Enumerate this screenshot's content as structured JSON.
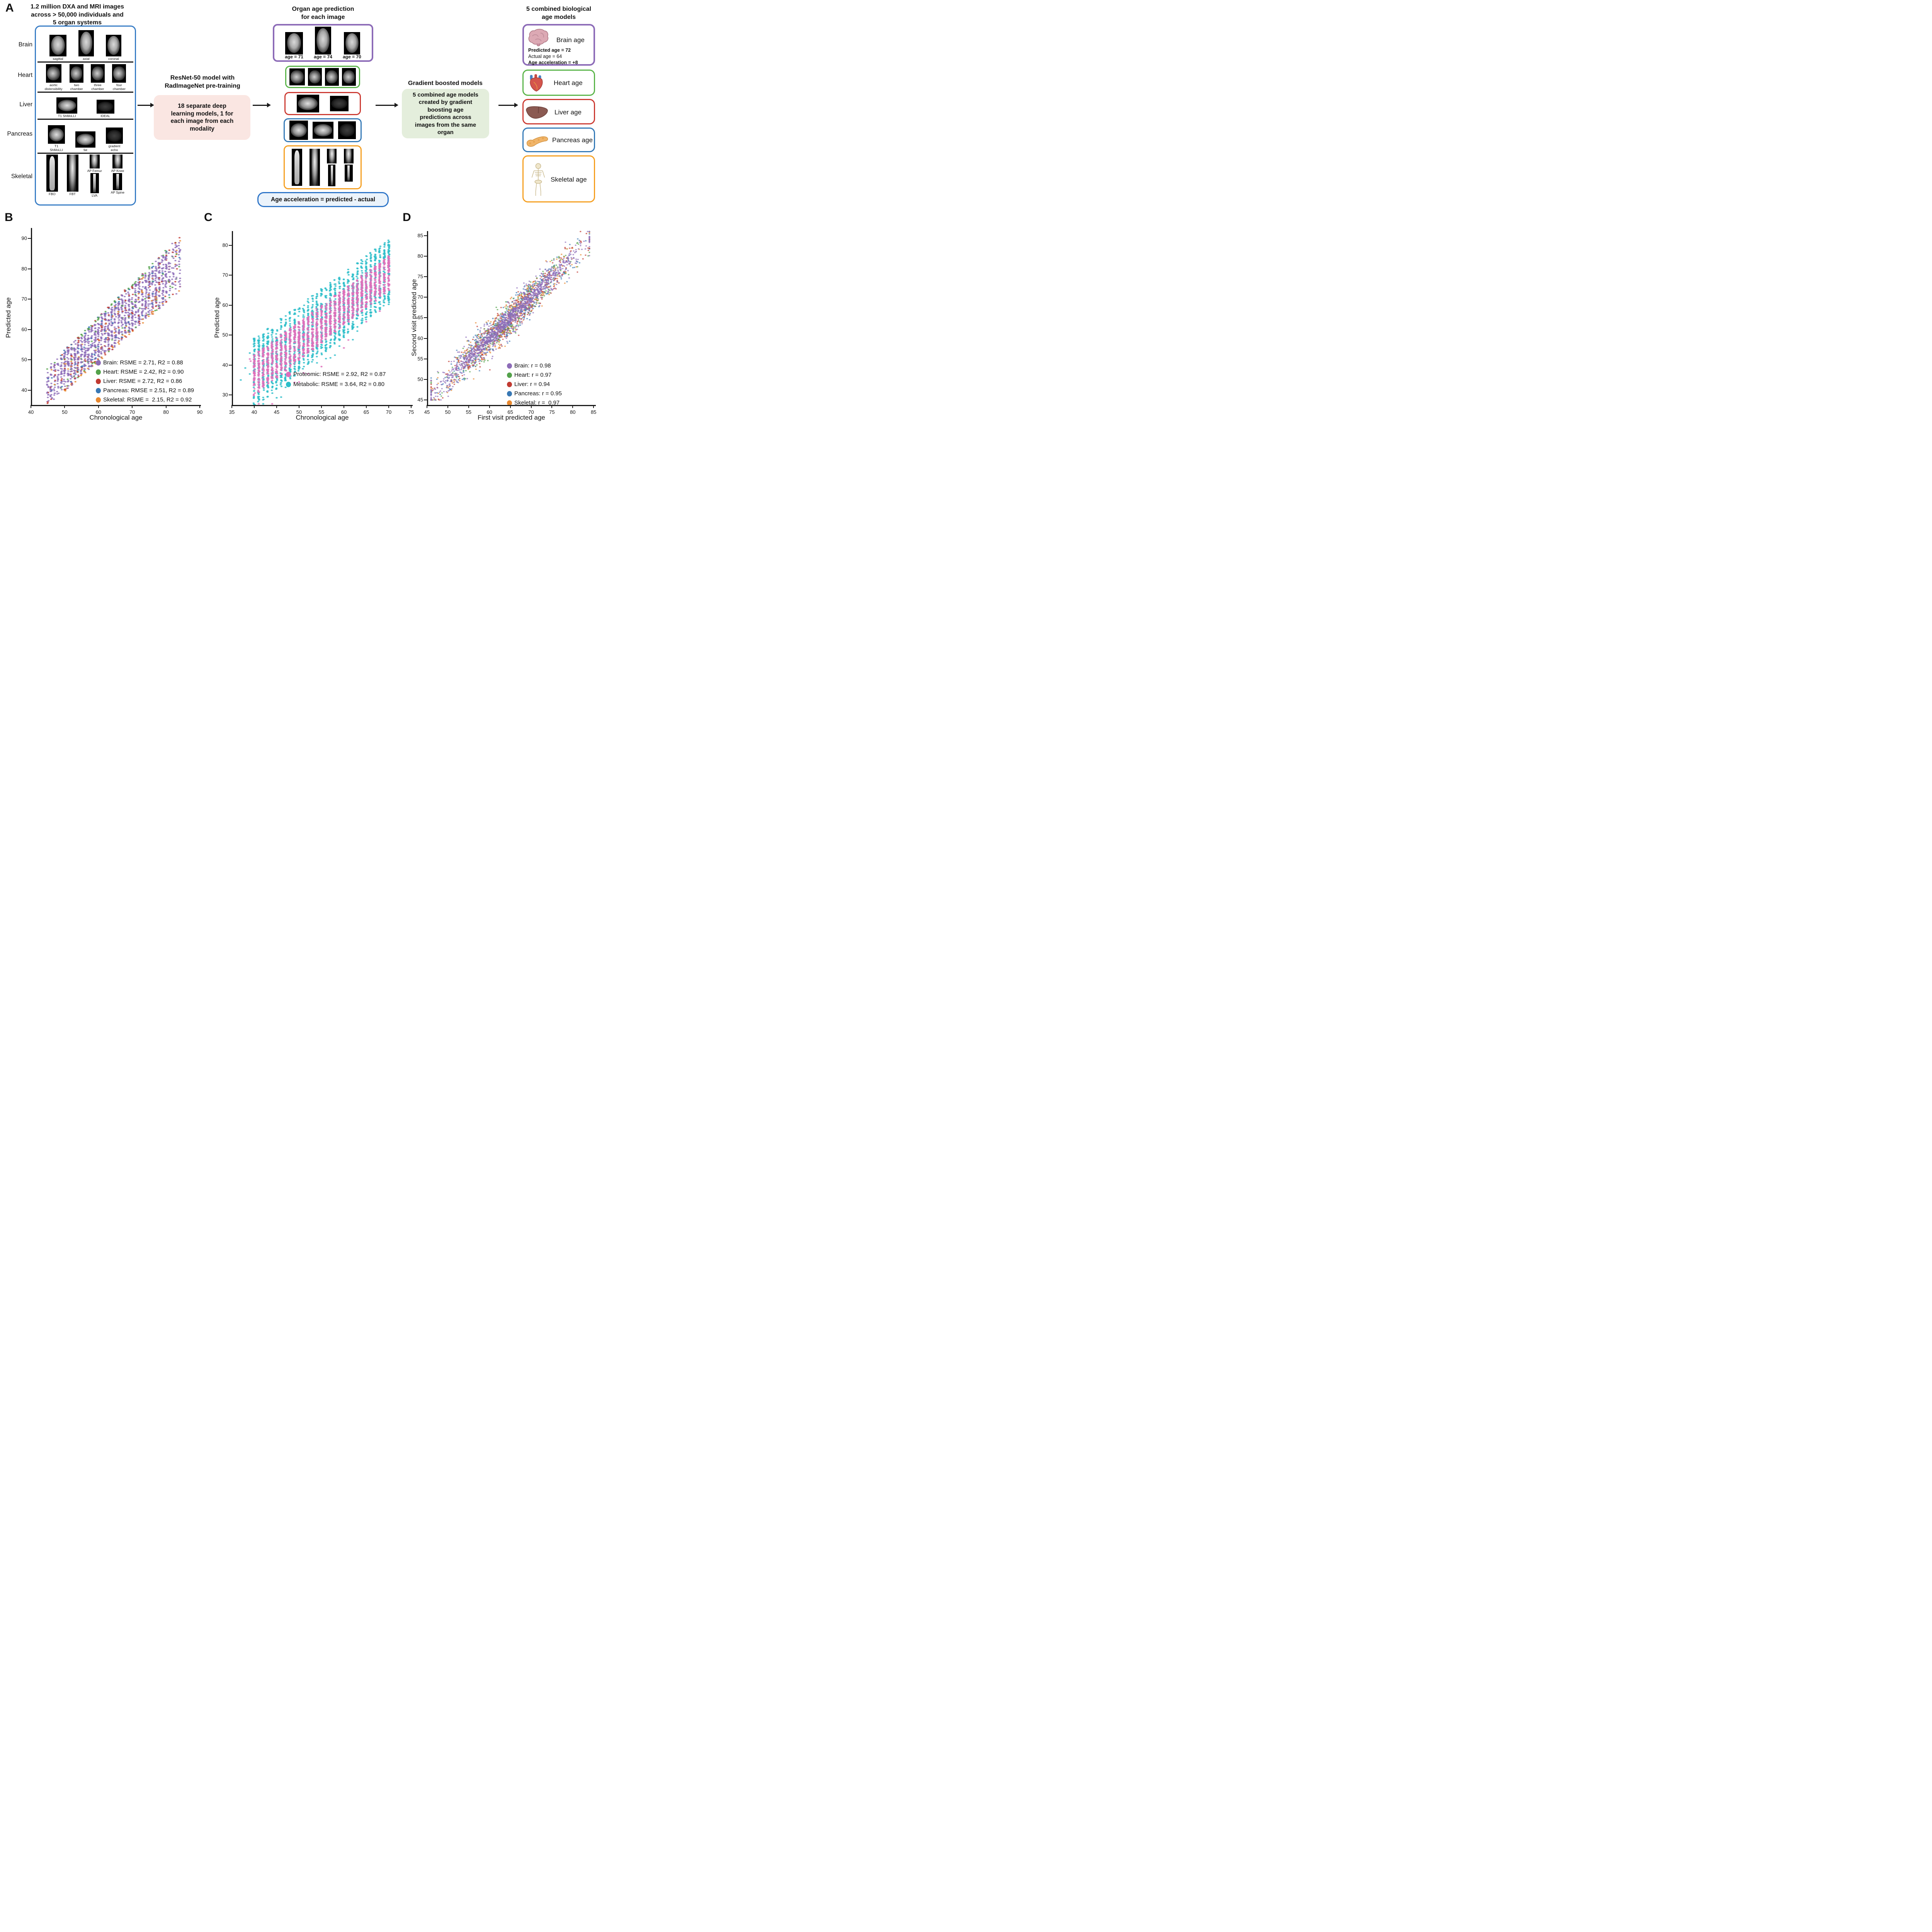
{
  "colors": {
    "purple": "#8D6CB8",
    "green": "#54A24B",
    "red": "#C13A31",
    "blue": "#3878B4",
    "orange": "#E8882F",
    "pink": "#DE6FBB",
    "cyan": "#2CBEC9"
  },
  "accents": {
    "box_blue": "#3A7EC6",
    "resnet_fill": "#FAE6E2",
    "gbm_fill": "#E4EEDC",
    "pill_fill": "#EBF3FB",
    "pill_border": "#2E75C8",
    "divider": "#1b1b1b"
  },
  "panel_a": {
    "label": "A",
    "dataset_title_lines": [
      "1.2 million DXA and MRI images",
      "across > 50,000 individuals and",
      "5 organ systems"
    ],
    "organ_rows": [
      {
        "organ": "Brain",
        "images": [
          "sagittal",
          "axial",
          "coronal"
        ]
      },
      {
        "organ": "Heart",
        "images": [
          "aortic distensibility",
          "two chamber",
          "three chamber",
          "four chamber"
        ]
      },
      {
        "organ": "Liver",
        "images": [
          "T1 ShMoLLI",
          "IDEAL"
        ]
      },
      {
        "organ": "Pancreas",
        "images": [
          "T1 ShMoLLI",
          "fat",
          "gradient echo"
        ]
      },
      {
        "organ": "Skeletal",
        "images": [
          "FBO",
          "FBT",
          "AP Femur",
          "LVA",
          "AP Knee",
          "AP Spine"
        ]
      }
    ],
    "resnet_title_lines": [
      "ResNet-50 model with",
      "RadImageNet pre-training"
    ],
    "resnet_box_lines": [
      "18 separate deep",
      "learning models, 1 for",
      "each image from each",
      "modality"
    ],
    "organ_age_title_lines": [
      "Organ age prediction",
      "for each image"
    ],
    "brain_age_captions": [
      "age = 71",
      "age = 74",
      "age = 70"
    ],
    "age_acceleration_text": "Age acceleration = predicted - actual",
    "gbm_title": "Gradient boosted models",
    "gbm_box_lines": [
      "5 combined age models",
      "created by gradient",
      "boosting age",
      "predictions across",
      "images from the same",
      "organ"
    ],
    "combined_title_lines": [
      "5 combined biological",
      "age models"
    ],
    "combined_cards": [
      {
        "name": "Brain age",
        "color": "#8D6CB8",
        "details": [
          "Predicted age = 72",
          "Actual age = 64",
          "Age acceleration = +8"
        ]
      },
      {
        "name": "Heart age",
        "color": "#5BB54A"
      },
      {
        "name": "Liver age",
        "color": "#CC3B33"
      },
      {
        "name": "Pancreas age",
        "color": "#357AB7"
      },
      {
        "name": "Skeletal age",
        "color": "#F5A023"
      }
    ]
  },
  "chart_data": [
    {
      "id": "B",
      "type": "scatter",
      "xlabel": "Chronological age",
      "ylabel": "Predicted age",
      "xlim": [
        40,
        90
      ],
      "ylim": [
        35,
        95
      ],
      "xticks": [
        40,
        50,
        60,
        70,
        80,
        90
      ],
      "yticks": [
        40,
        50,
        60,
        70,
        80,
        90
      ],
      "grid": false,
      "legend_position": "lower right",
      "series": [
        {
          "name": "Brain",
          "color": "#8D6CB8",
          "rmse": 2.71,
          "r2": 0.88,
          "label": "Brain: RSME = 2.71, R2 = 0.88"
        },
        {
          "name": "Heart",
          "color": "#54A24B",
          "rmse": 2.42,
          "r2": 0.9,
          "label": "Heart: RSME = 2.42, R2 = 0.90"
        },
        {
          "name": "Liver",
          "color": "#C13A31",
          "rmse": 2.72,
          "r2": 0.86,
          "label": "Liver: RSME = 2.72, R2 = 0.86"
        },
        {
          "name": "Pancreas",
          "color": "#3878B4",
          "rmse": 2.51,
          "r2": 0.89,
          "label": "Pancreas: RMSE = 2.51, R2 = 0.89"
        },
        {
          "name": "Skeletal",
          "color": "#E8882F",
          "rmse": 2.15,
          "r2": 0.92,
          "label": "Skeletal: RSME =  2.15, R2 = 0.92"
        }
      ],
      "distribution": {
        "age_min": 45,
        "age_max": 84,
        "band_top_slope": 1.1,
        "band_top_intercept": -1.8,
        "band_bottom_slope": 0.97,
        "band_bottom_intercept": -8.8,
        "points_per_age": 46
      }
    },
    {
      "id": "C",
      "type": "scatter",
      "xlabel": "Chronological age",
      "ylabel": "Predicted age",
      "xlim": [
        35,
        75
      ],
      "ylim": [
        24,
        86
      ],
      "xticks": [
        35,
        40,
        45,
        50,
        55,
        60,
        65,
        70,
        75
      ],
      "yticks": [
        30,
        40,
        50,
        60,
        70,
        80
      ],
      "grid": false,
      "legend_position": "lower right",
      "series": [
        {
          "name": "Proteomic",
          "color": "#DE6FBB",
          "rmse": 2.92,
          "r2": 0.87,
          "label": "Proteomic: RSME = 2.92, R2 = 0.87"
        },
        {
          "name": "Metabolic",
          "color": "#2CBEC9",
          "rmse": 3.64,
          "r2": 0.8,
          "label": "Metabolic: RSME = 3.64, R2 = 0.80"
        }
      ],
      "distribution": {
        "age_min": 40,
        "age_max": 70,
        "points_per_age": 55,
        "metabolic": {
          "top_slope": 1.1,
          "top_intercept": 5.0,
          "bottom_slope": 1.17,
          "bottom_intercept": -21.0
        },
        "proteomic": {
          "top_slope": 1.1,
          "top_intercept": -0.5,
          "bottom_slope": 1.17,
          "bottom_intercept": -17.0
        },
        "outliers": [
          [
            37,
            35,
            "cyan"
          ],
          [
            38,
            39,
            "cyan"
          ],
          [
            39,
            37,
            "cyan"
          ],
          [
            39,
            44,
            "cyan"
          ],
          [
            39,
            42,
            "pink"
          ],
          [
            39.2,
            41.3,
            "pink"
          ]
        ]
      }
    },
    {
      "id": "D",
      "type": "scatter",
      "xlabel": "First visit predicted age",
      "ylabel": "Second visit predicted age",
      "xlim": [
        45,
        85
      ],
      "ylim": [
        44,
        87
      ],
      "xticks": [
        45,
        50,
        55,
        60,
        65,
        70,
        75,
        80,
        85
      ],
      "yticks": [
        45,
        50,
        55,
        60,
        65,
        70,
        75,
        80,
        85
      ],
      "grid": false,
      "legend_position": "lower right",
      "series": [
        {
          "name": "Brain",
          "color": "#8D6CB8",
          "r": 0.98,
          "label": "Brain: r = 0.98"
        },
        {
          "name": "Heart",
          "color": "#54A24B",
          "r": 0.97,
          "label": "Heart: r = 0.97"
        },
        {
          "name": "Liver",
          "color": "#C13A31",
          "r": 0.94,
          "label": "Liver: r = 0.94"
        },
        {
          "name": "Pancreas",
          "color": "#3878B4",
          "r": 0.95,
          "label": "Pancreas: r = 0.95"
        },
        {
          "name": "Skeletal",
          "color": "#E8882F",
          "r": 0.97,
          "label": "Skeletal: r =  0.97"
        }
      ],
      "distribution": {
        "n": 2600,
        "mean": 64,
        "sd": 8.5,
        "min": 46,
        "max": 84,
        "noise_sd": 1.9
      }
    }
  ]
}
